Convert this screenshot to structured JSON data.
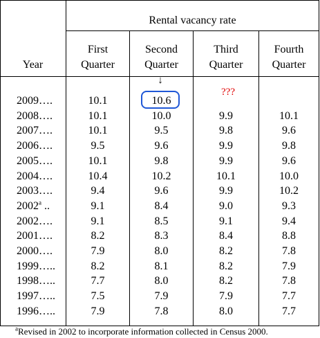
{
  "table": {
    "group_header": "Rental vacancy rate",
    "column_headers": {
      "year": "Year",
      "q1": [
        "First",
        "Quarter"
      ],
      "q2": [
        "Second",
        "Quarter"
      ],
      "q3": [
        "Third",
        "Quarter"
      ],
      "q4": [
        "Fourth",
        "Quarter"
      ]
    },
    "rows": [
      {
        "year": "2009….",
        "q1": "10.1",
        "q2": "10.6",
        "q3": "",
        "q4": ""
      },
      {
        "year": "2008….",
        "q1": "10.1",
        "q2": "10.0",
        "q3": "9.9",
        "q4": "10.1"
      },
      {
        "year": "2007….",
        "q1": "10.1",
        "q2": "9.5",
        "q3": "9.8",
        "q4": "9.6"
      },
      {
        "year": "2006….",
        "q1": "9.5",
        "q2": "9.6",
        "q3": "9.9",
        "q4": "9.8"
      },
      {
        "year": "2005….",
        "q1": "10.1",
        "q2": "9.8",
        "q3": "9.9",
        "q4": "9.6"
      },
      {
        "year": "2004….",
        "q1": "10.4",
        "q2": "10.2",
        "q3": "10.1",
        "q4": "10.0"
      },
      {
        "year": "2003….",
        "q1": "9.4",
        "q2": "9.6",
        "q3": "9.9",
        "q4": "10.2"
      },
      {
        "year": "2002",
        "year_sup": "a",
        "year_suffix": " ..",
        "q1": "9.1",
        "q2": "8.4",
        "q3": "9.0",
        "q4": "9.3"
      },
      {
        "year": "2002….",
        "q1": "9.1",
        "q2": "8.5",
        "q3": "9.1",
        "q4": "9.4"
      },
      {
        "year": "2001….",
        "q1": "8.2",
        "q2": "8.3",
        "q3": "8.4",
        "q4": "8.8"
      },
      {
        "year": "2000….",
        "q1": "7.9",
        "q2": "8.0",
        "q3": "8.2",
        "q4": "7.8"
      },
      {
        "year": "1999…..",
        "q1": "8.2",
        "q2": "8.1",
        "q3": "8.2",
        "q4": "7.9"
      },
      {
        "year": "1998…..",
        "q1": "7.7",
        "q2": "8.0",
        "q3": "8.2",
        "q4": "7.8"
      },
      {
        "year": "1997…..",
        "q1": "7.5",
        "q2": "7.9",
        "q3": "7.9",
        "q4": "7.7"
      },
      {
        "year": "1996…..",
        "q1": "7.9",
        "q2": "7.8",
        "q3": "8.0",
        "q4": "7.7"
      }
    ]
  },
  "annotations": {
    "arrow": "↓",
    "question": "???",
    "circle_color": "#1f57d6",
    "question_color": "#e00000"
  },
  "footnote": {
    "marker": "a",
    "text": "Revised in 2002 to incorporate information collected in Census 2000."
  }
}
